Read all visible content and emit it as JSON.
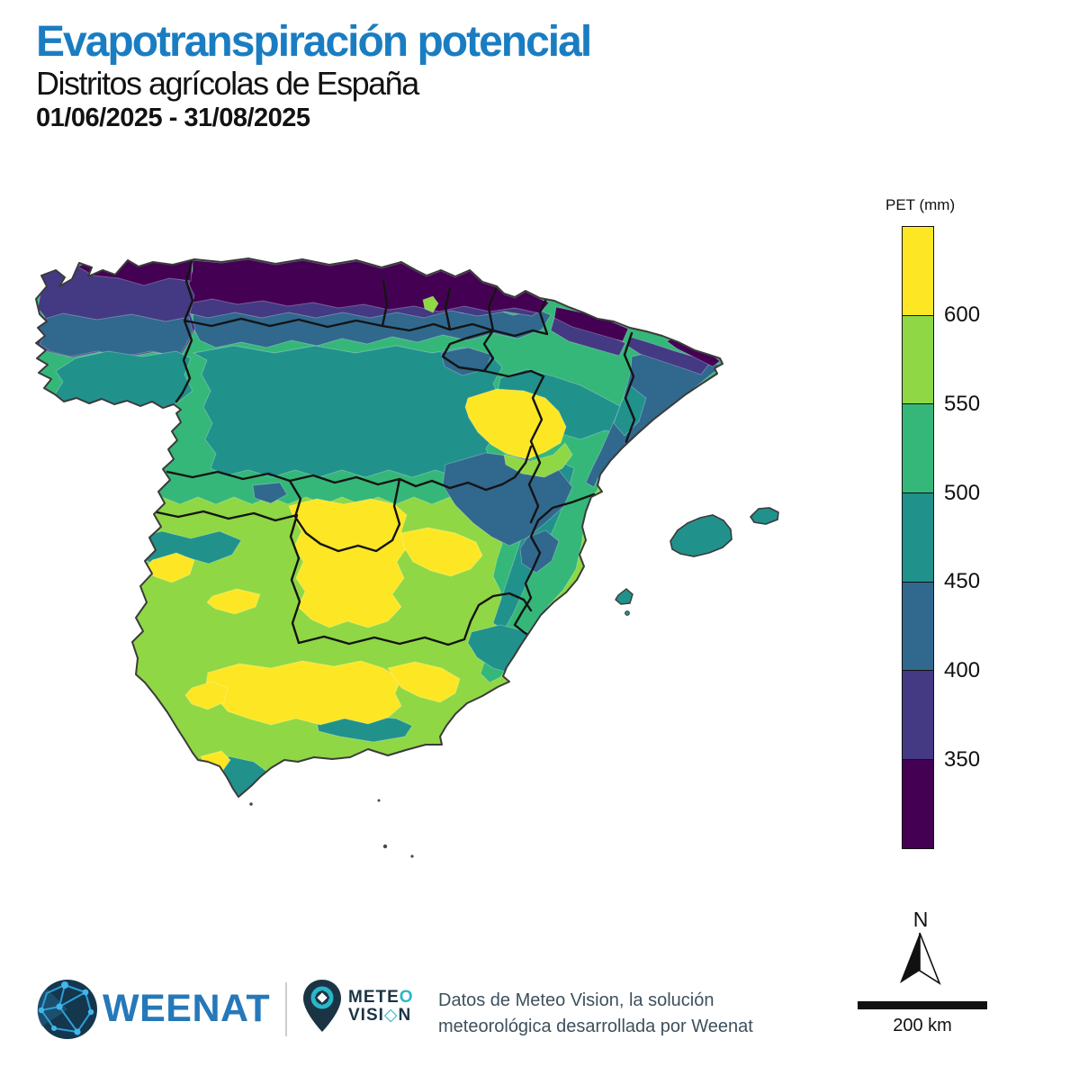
{
  "header": {
    "title": "Evapotranspiración potencial",
    "subtitle": "Distritos agrícolas de España",
    "date_range": "01/06/2025 - 31/08/2025"
  },
  "legend": {
    "title": "PET (mm)",
    "ticks": [
      "600",
      "550",
      "500",
      "450",
      "400",
      "350"
    ],
    "classes": [
      {
        "color": "#FDE725"
      },
      {
        "color": "#8FD744"
      },
      {
        "color": "#35B779"
      },
      {
        "color": "#21918C"
      },
      {
        "color": "#31688E"
      },
      {
        "color": "#443983"
      },
      {
        "color": "#440154"
      }
    ]
  },
  "map": {
    "north_label": "N",
    "scale_label": "200 km"
  },
  "footer": {
    "weenat_wordmark": "WEENAT",
    "meteo_line1_prefix": "METE",
    "meteo_line1_o": "O",
    "meteo_line2_prefix": "VISI",
    "meteo_line2_o": "◇",
    "meteo_line2_suffix": "N",
    "attribution_line1": "Datos de Meteo Vision, la solución",
    "attribution_line2": "meteorológica desarrollada por Weenat"
  },
  "colors": {
    "title_blue": "#1A7DC2",
    "weenat_blue": "#2578B9",
    "meteo_dark": "#1B3444",
    "meteo_teal": "#2AB6C9",
    "attribution_gray": "#3E505C"
  }
}
